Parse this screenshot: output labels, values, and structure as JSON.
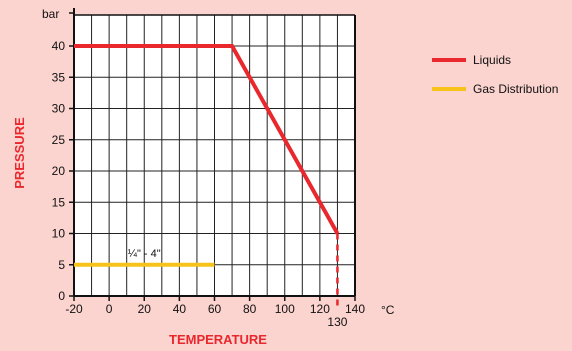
{
  "chart_data": {
    "type": "line",
    "title": "",
    "xlabel": "TEMPERATURE",
    "ylabel": "PRESSURE",
    "x_unit": "°C",
    "y_unit": "bar",
    "xlim": [
      -20,
      140
    ],
    "ylim": [
      0,
      45
    ],
    "x_ticks": [
      -20,
      0,
      20,
      40,
      60,
      80,
      100,
      120,
      140
    ],
    "y_ticks": [
      0,
      5,
      10,
      15,
      20,
      25,
      30,
      35,
      40
    ],
    "grid": true,
    "legend_position": "right",
    "series": [
      {
        "name": "Liquids",
        "color": "#e8282d",
        "points": [
          [
            -20,
            40
          ],
          [
            70,
            40
          ],
          [
            130,
            10
          ]
        ]
      },
      {
        "name": "Gas Distribution",
        "color": "#f7c31b",
        "points": [
          [
            -20,
            5
          ],
          [
            60,
            5
          ]
        ]
      }
    ],
    "annotations": [
      {
        "text": "¼\" - 4\""
      },
      {
        "text": "130",
        "x": 130
      }
    ]
  }
}
